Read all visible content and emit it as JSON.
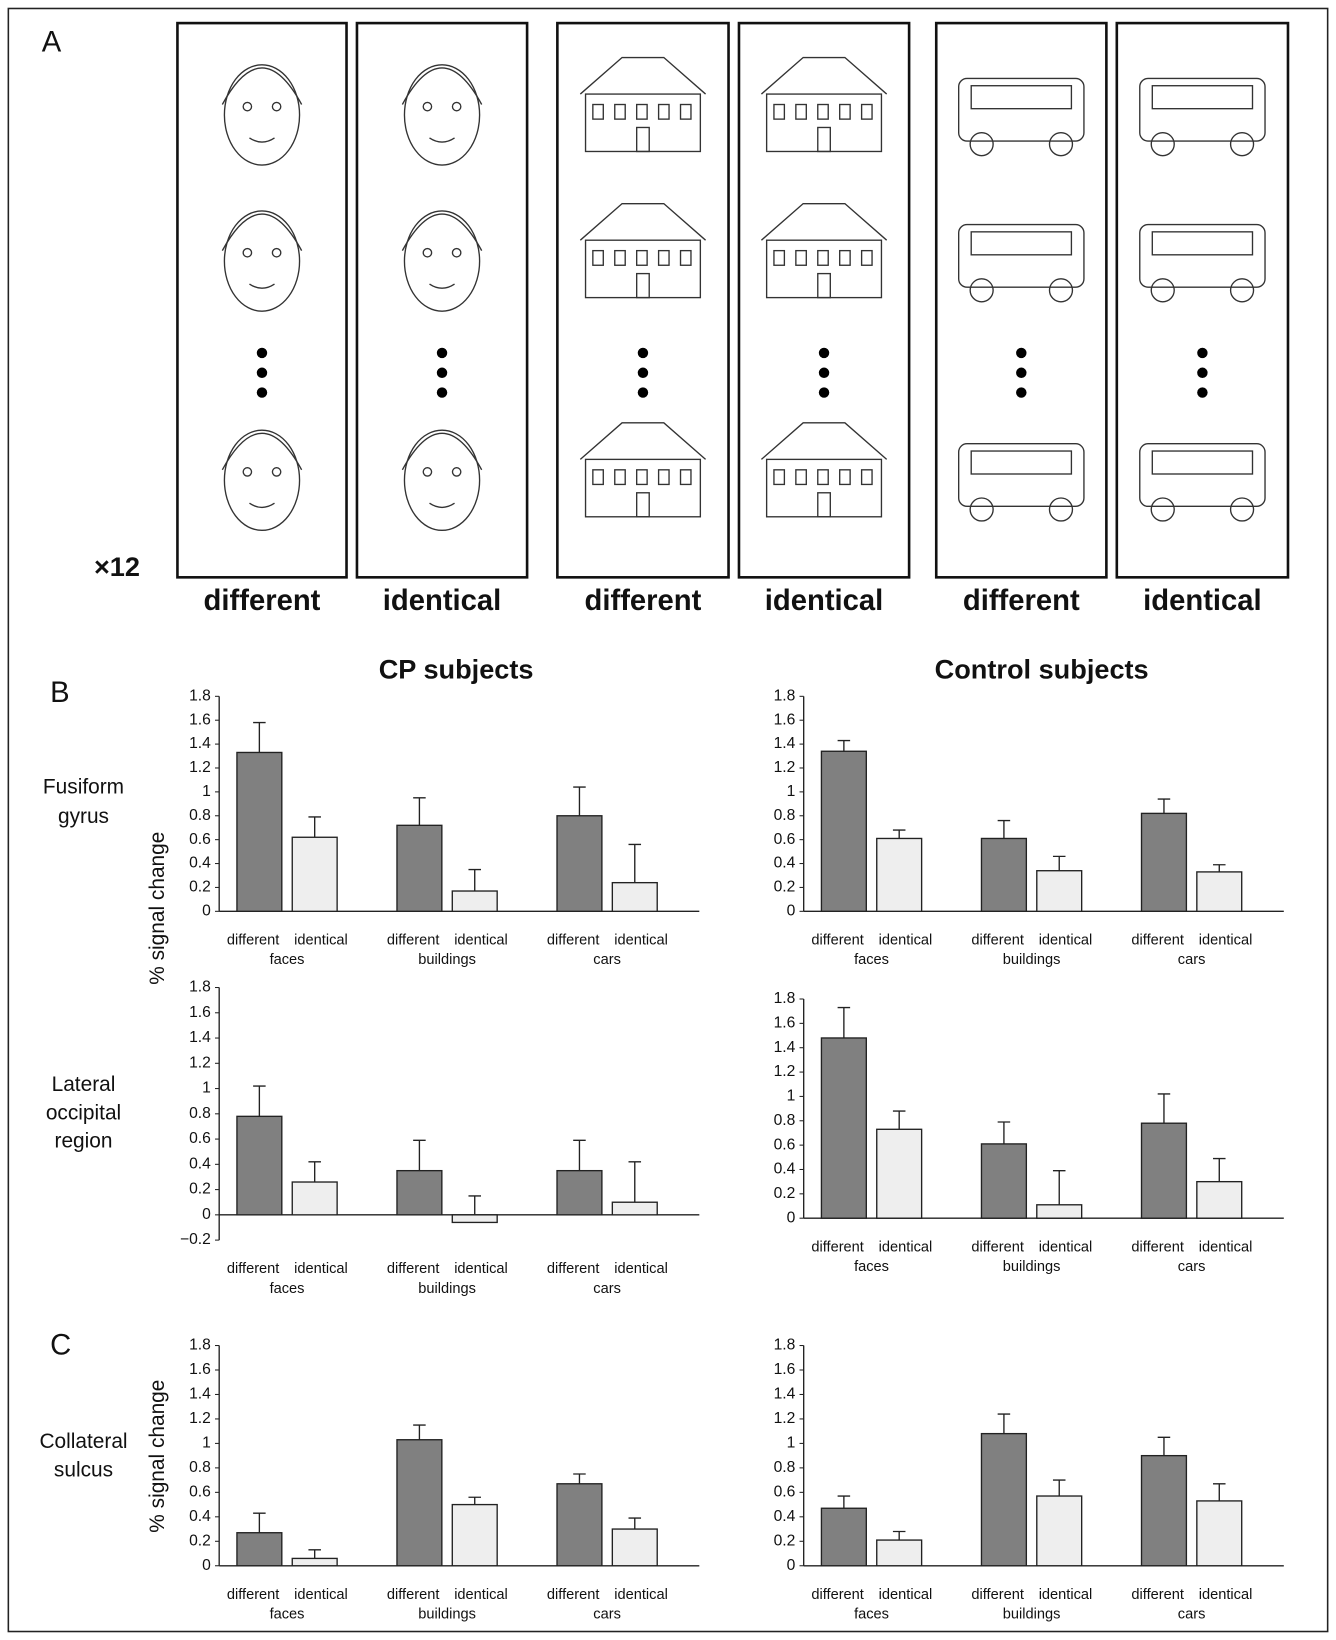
{
  "panel_a": {
    "label": "A",
    "multiplier": "×12",
    "columns": [
      "different",
      "identical",
      "different",
      "identical",
      "different",
      "identical"
    ]
  },
  "panel_b_label": "B",
  "panel_c_label": "C",
  "column_titles": [
    "CP subjects",
    "Control subjects"
  ],
  "row_labels": [
    [
      "Fusiform",
      "gyrus"
    ],
    [
      "Lateral",
      "occipital",
      "region"
    ],
    [
      "Collateral",
      "sulcus"
    ]
  ],
  "y_axis_label": "% signal change",
  "chart_data": [
    {
      "type": "bar",
      "categories": [
        "faces",
        "buildings",
        "cars"
      ],
      "ylim": [
        0,
        1.8
      ],
      "yticks": [
        0,
        0.2,
        0.4,
        0.6,
        0.8,
        1,
        1.2,
        1.4,
        1.6,
        1.8
      ],
      "series": [
        {
          "name": "different",
          "color": "#808080",
          "values": [
            1.33,
            0.72,
            0.8
          ],
          "errors": [
            0.25,
            0.23,
            0.24
          ]
        },
        {
          "name": "identical",
          "color": "#eeeeee",
          "values": [
            0.62,
            0.17,
            0.24
          ],
          "errors": [
            0.17,
            0.18,
            0.32
          ]
        }
      ]
    },
    {
      "type": "bar",
      "categories": [
        "faces",
        "buildings",
        "cars"
      ],
      "ylim": [
        0,
        1.8
      ],
      "yticks": [
        0,
        0.2,
        0.4,
        0.6,
        0.8,
        1,
        1.2,
        1.4,
        1.6,
        1.8
      ],
      "series": [
        {
          "name": "different",
          "color": "#808080",
          "values": [
            1.34,
            0.61,
            0.82
          ],
          "errors": [
            0.09,
            0.15,
            0.12
          ]
        },
        {
          "name": "identical",
          "color": "#eeeeee",
          "values": [
            0.61,
            0.34,
            0.33
          ],
          "errors": [
            0.07,
            0.12,
            0.06
          ]
        }
      ]
    },
    {
      "type": "bar",
      "categories": [
        "faces",
        "buildings",
        "cars"
      ],
      "ylim": [
        -0.2,
        1.8
      ],
      "yticks": [
        {
          "value": -0.2,
          "label": "−0.2"
        },
        0,
        0.2,
        0.4,
        0.6,
        0.8,
        1,
        1.2,
        1.4,
        1.6,
        1.8
      ],
      "series": [
        {
          "name": "different",
          "color": "#808080",
          "values": [
            0.78,
            0.35,
            0.35
          ],
          "errors": [
            0.24,
            0.24,
            0.24
          ]
        },
        {
          "name": "identical",
          "color": "#eeeeee",
          "values": [
            0.26,
            -0.06,
            0.1
          ],
          "errors": [
            0.16,
            0.15,
            0.32
          ]
        }
      ]
    },
    {
      "type": "bar",
      "categories": [
        "faces",
        "buildings",
        "cars"
      ],
      "ylim": [
        0,
        1.8
      ],
      "yticks": [
        0,
        0.2,
        0.4,
        0.6,
        0.8,
        1,
        1.2,
        1.4,
        1.6,
        1.8
      ],
      "series": [
        {
          "name": "different",
          "color": "#808080",
          "values": [
            1.48,
            0.61,
            0.78
          ],
          "errors": [
            0.25,
            0.18,
            0.24
          ]
        },
        {
          "name": "identical",
          "color": "#eeeeee",
          "values": [
            0.73,
            0.11,
            0.3
          ],
          "errors": [
            0.15,
            0.28,
            0.19
          ]
        }
      ]
    },
    {
      "type": "bar",
      "categories": [
        "faces",
        "buildings",
        "cars"
      ],
      "ylim": [
        0,
        1.8
      ],
      "yticks": [
        0,
        0.2,
        0.4,
        0.6,
        0.8,
        1,
        1.2,
        1.4,
        1.6,
        1.8
      ],
      "series": [
        {
          "name": "different",
          "color": "#808080",
          "values": [
            0.27,
            1.03,
            0.67
          ],
          "errors": [
            0.16,
            0.12,
            0.08
          ]
        },
        {
          "name": "identical",
          "color": "#eeeeee",
          "values": [
            0.06,
            0.5,
            0.3
          ],
          "errors": [
            0.07,
            0.06,
            0.09
          ]
        }
      ]
    },
    {
      "type": "bar",
      "categories": [
        "faces",
        "buildings",
        "cars"
      ],
      "ylim": [
        0,
        1.8
      ],
      "yticks": [
        0,
        0.2,
        0.4,
        0.6,
        0.8,
        1,
        1.2,
        1.4,
        1.6,
        1.8
      ],
      "series": [
        {
          "name": "different",
          "color": "#808080",
          "values": [
            0.47,
            1.08,
            0.9
          ],
          "errors": [
            0.1,
            0.16,
            0.15
          ]
        },
        {
          "name": "identical",
          "color": "#eeeeee",
          "values": [
            0.21,
            0.57,
            0.53
          ],
          "errors": [
            0.07,
            0.13,
            0.14
          ]
        }
      ]
    }
  ]
}
